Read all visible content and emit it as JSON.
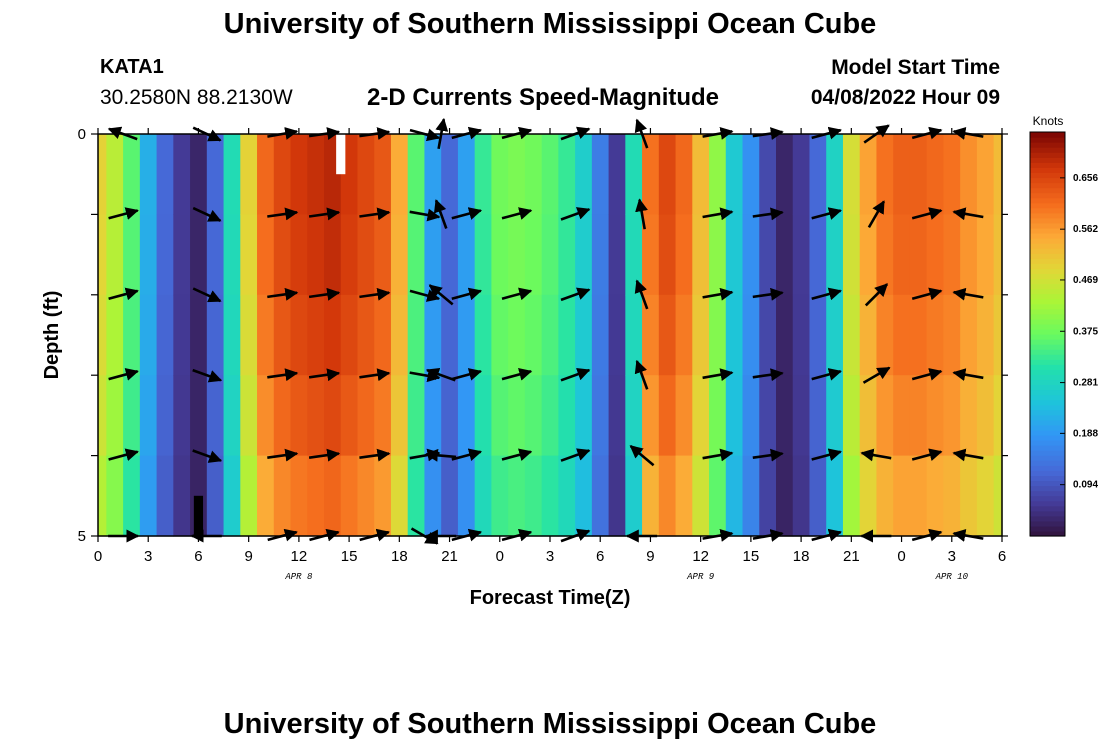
{
  "header": {
    "title": "University of Southern Mississippi Ocean Cube",
    "station": "KATA1",
    "coords": "30.2580N  88.2130W",
    "subtitle": "2-D Currents Speed-Magnitude",
    "model_start_label": "Model Start Time",
    "model_start_value": "04/08/2022 Hour 09"
  },
  "footer": {
    "title": "University of Southern Mississippi Ocean Cube"
  },
  "chart_data": {
    "type": "heatmap",
    "xlabel": "Forecast Time(Z)",
    "ylabel": "Depth (ft)",
    "x_tick_labels": [
      "0",
      "3",
      "6",
      "9",
      "12",
      "15",
      "18",
      "21",
      "0",
      "3",
      "6",
      "9",
      "12",
      "15",
      "18",
      "21",
      "0",
      "3",
      "6"
    ],
    "y_tick_labels": [
      "0",
      "5"
    ],
    "ylim": [
      0,
      5
    ],
    "date_labels": [
      {
        "text": "APR 8",
        "hour": 12
      },
      {
        "text": "APR 9",
        "hour": 36
      },
      {
        "text": "APR 10",
        "hour": 51
      }
    ],
    "colorbar": {
      "title": "Knots",
      "ticks": [
        0.094,
        0.188,
        0.281,
        0.375,
        0.469,
        0.562,
        0.656
      ],
      "range": [
        0.0,
        0.74
      ]
    },
    "hours": [
      0,
      1,
      2,
      3,
      4,
      5,
      6,
      7,
      8,
      9,
      10,
      11,
      12,
      13,
      14,
      15,
      16,
      17,
      18,
      19,
      20,
      21,
      22,
      23,
      24,
      25,
      26,
      27,
      28,
      29,
      30,
      31,
      32,
      33,
      34,
      35,
      36,
      37,
      38,
      39,
      40,
      41,
      42,
      43,
      44,
      45,
      46,
      47,
      48,
      49,
      50,
      51,
      52,
      53,
      54
    ],
    "speed_knots": [
      0.5,
      0.45,
      0.36,
      0.22,
      0.12,
      0.06,
      0.03,
      0.12,
      0.3,
      0.5,
      0.62,
      0.66,
      0.68,
      0.69,
      0.7,
      0.68,
      0.66,
      0.64,
      0.55,
      0.36,
      0.2,
      0.12,
      0.2,
      0.33,
      0.38,
      0.39,
      0.38,
      0.36,
      0.33,
      0.27,
      0.15,
      0.06,
      0.3,
      0.61,
      0.66,
      0.62,
      0.53,
      0.41,
      0.26,
      0.18,
      0.08,
      0.03,
      0.06,
      0.12,
      0.28,
      0.48,
      0.56,
      0.61,
      0.63,
      0.63,
      0.62,
      0.61,
      0.58,
      0.56,
      0.53
    ],
    "depth_factor": [
      0.99,
      0.98,
      0.96,
      0.93,
      0.88
    ],
    "masked_cells": [
      {
        "hour": 14.5,
        "depth": 0,
        "fill": "white"
      },
      {
        "hour": 6,
        "depth": 4.5,
        "fill": "black"
      }
    ],
    "vectors": {
      "hours": [
        1.5,
        6.5,
        11,
        13.5,
        16.5,
        19.5,
        20.5,
        22,
        25,
        28.5,
        32.5,
        37,
        40,
        43.5,
        46.5,
        49.5,
        52
      ],
      "depths": [
        0,
        1,
        2,
        3,
        4,
        5
      ],
      "angles_deg": [
        [
          160,
          -25,
          10,
          8,
          8,
          -15,
          80,
          15,
          15,
          20,
          110,
          10,
          8,
          15,
          35,
          15,
          170
        ],
        [
          15,
          -25,
          8,
          8,
          8,
          -10,
          110,
          15,
          15,
          20,
          100,
          10,
          8,
          15,
          60,
          15,
          170
        ],
        [
          15,
          -25,
          8,
          8,
          8,
          -15,
          140,
          15,
          15,
          20,
          110,
          10,
          8,
          15,
          45,
          15,
          170
        ],
        [
          15,
          -20,
          8,
          8,
          8,
          -10,
          160,
          15,
          15,
          20,
          110,
          10,
          8,
          15,
          30,
          15,
          170
        ],
        [
          15,
          -20,
          8,
          8,
          8,
          10,
          175,
          15,
          15,
          20,
          140,
          10,
          8,
          15,
          170,
          15,
          170
        ],
        [
          0,
          180,
          15,
          15,
          15,
          -30,
          180,
          15,
          15,
          20,
          180,
          10,
          10,
          15,
          180,
          15,
          170
        ]
      ]
    }
  }
}
